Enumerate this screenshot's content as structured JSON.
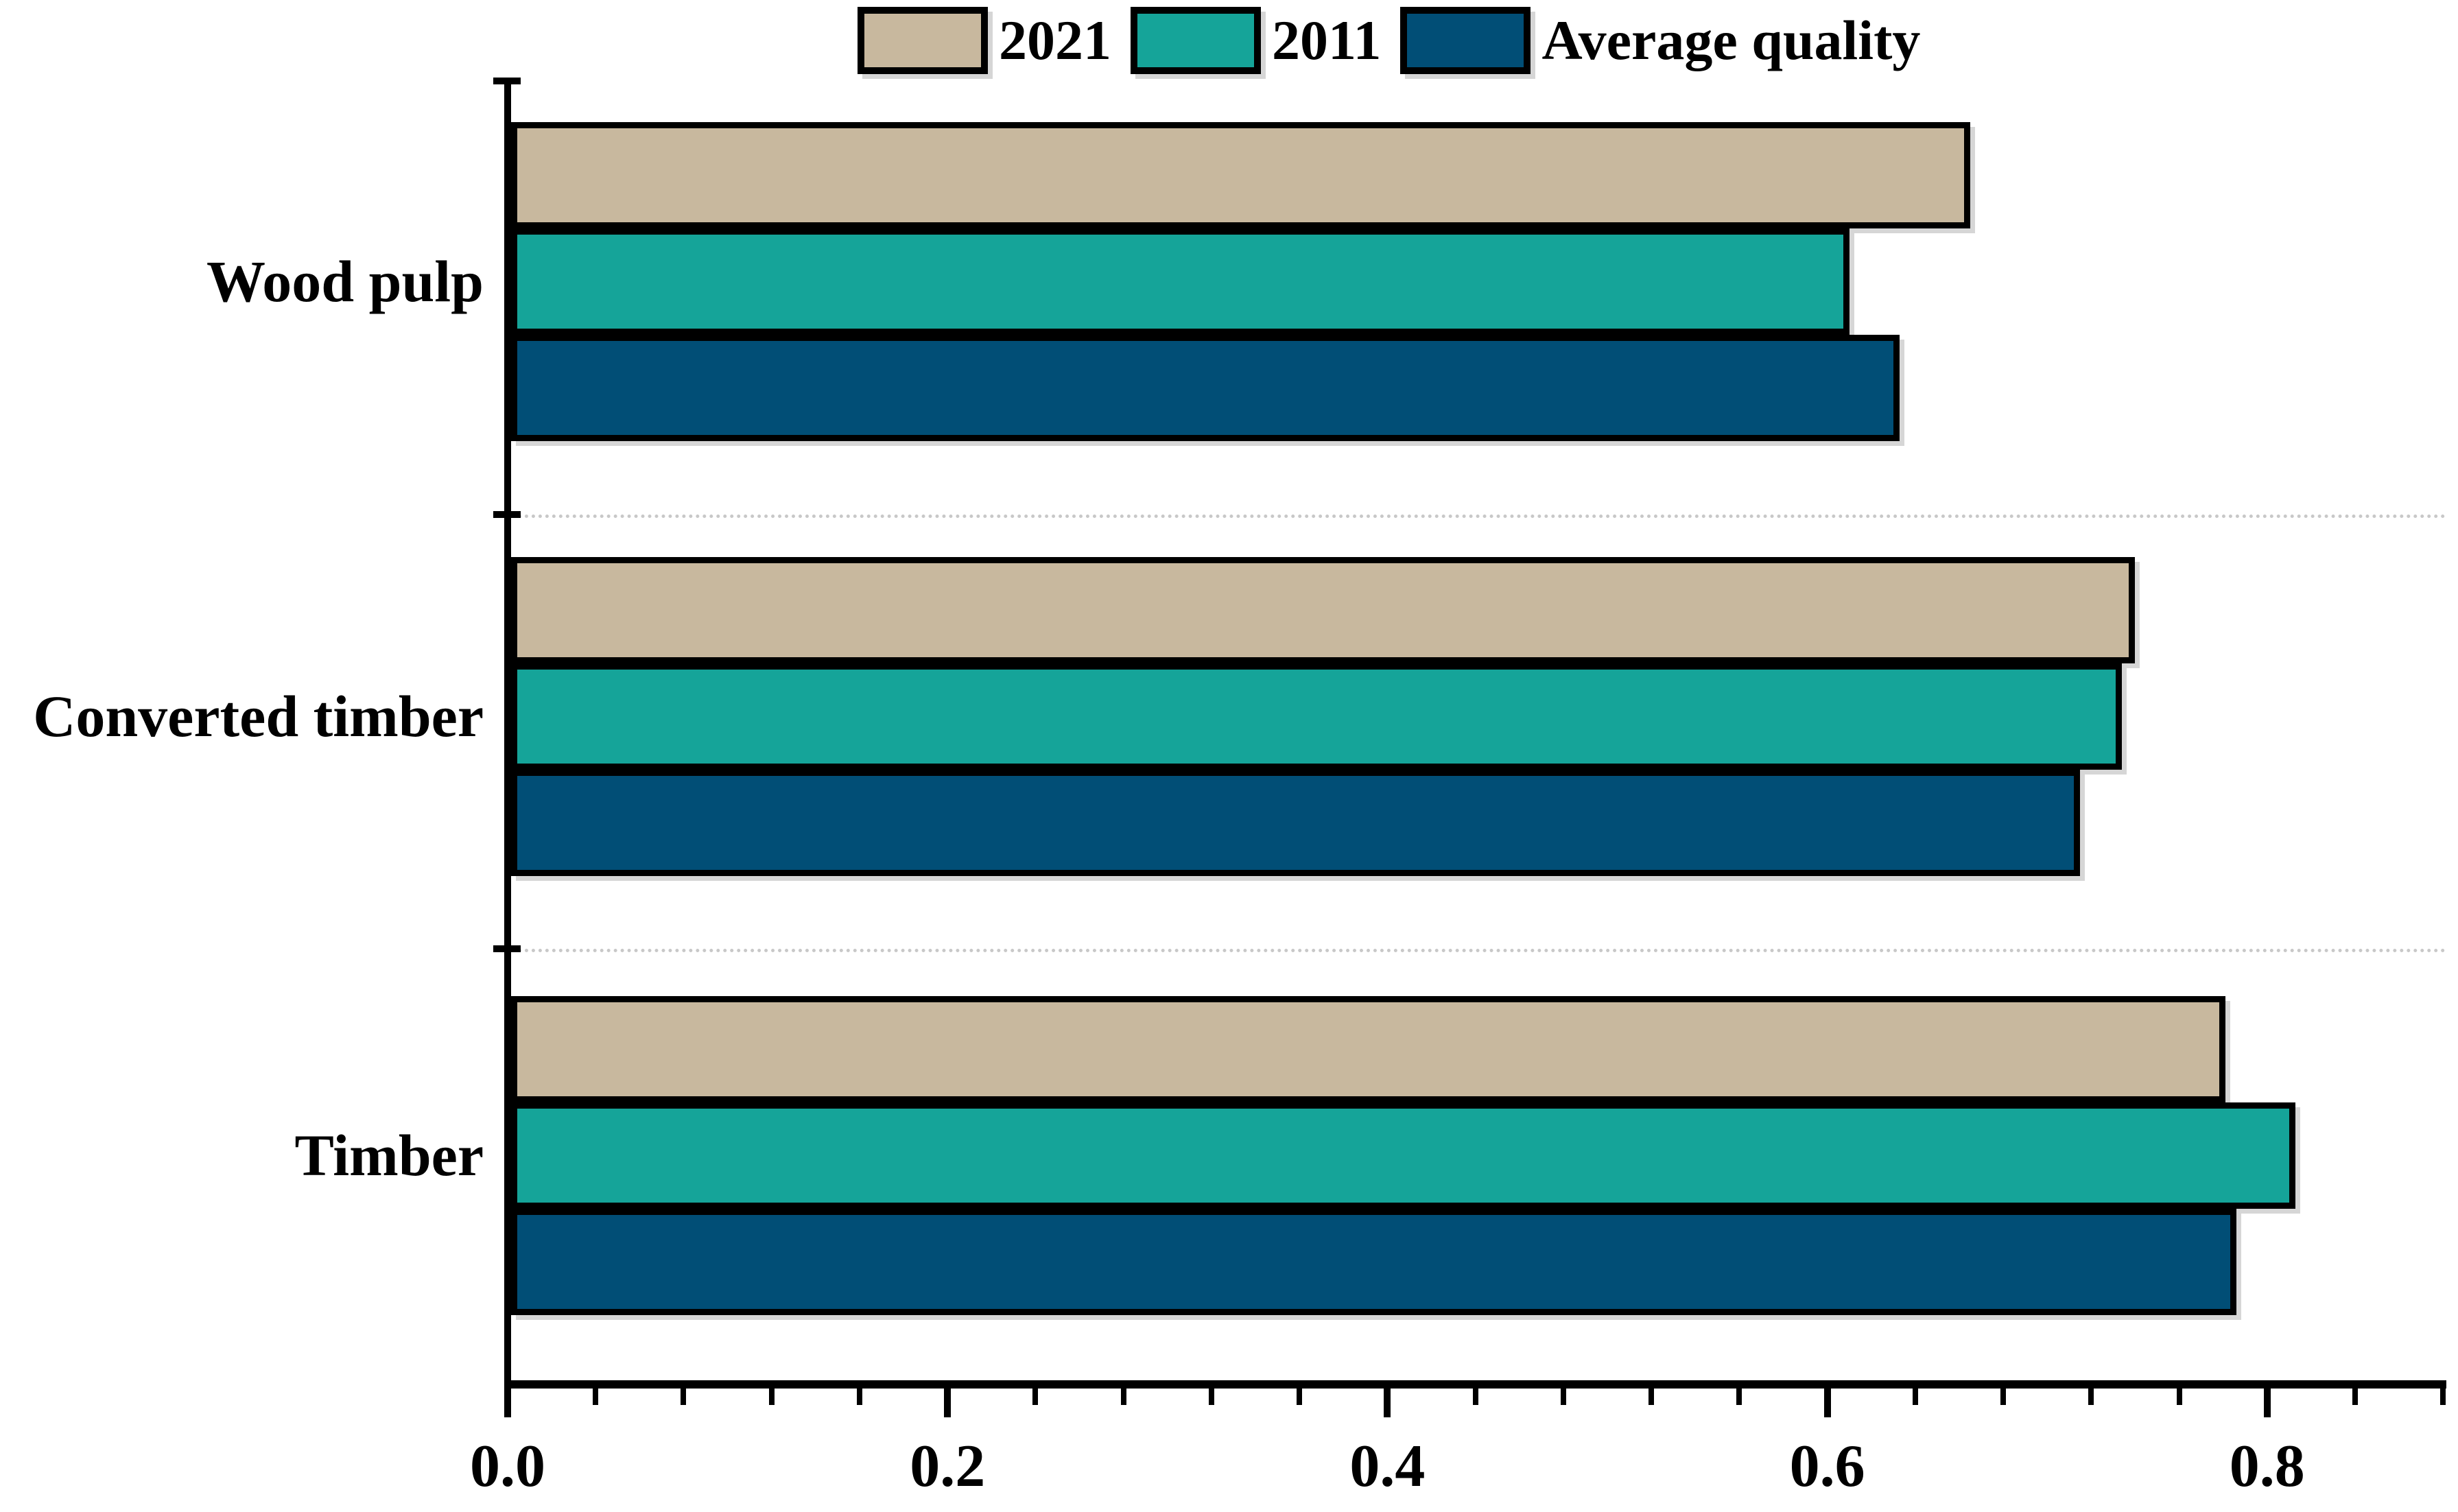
{
  "chart_data": {
    "type": "bar",
    "orientation": "horizontal",
    "title": "",
    "xlabel": "",
    "ylabel": "",
    "categories": [
      "Wood pulp",
      "Converted timber",
      "Timber"
    ],
    "series": [
      {
        "name": "2021",
        "color": "#c8b89e",
        "values": [
          0.665,
          0.74,
          0.781
        ]
      },
      {
        "name": "2011",
        "color": "#15a499",
        "values": [
          0.61,
          0.734,
          0.813
        ]
      },
      {
        "name": "Average quality",
        "color": "#014e76",
        "values": [
          0.633,
          0.715,
          0.786
        ]
      }
    ],
    "xlim": [
      0,
      0.88
    ],
    "x_tick_labels": [
      "0.0",
      "0.2",
      "0.4",
      "0.6",
      "0.8"
    ],
    "x_tick_values": [
      0,
      0.2,
      0.4,
      0.6,
      0.8
    ],
    "x_minor_tick_step": 0.04,
    "legend_position": "top-center",
    "grid": "dotted gray separators between category groups",
    "bar_outline_color": "#000000",
    "axis_color": "#000000",
    "separator_color": "#c8c8c8"
  }
}
